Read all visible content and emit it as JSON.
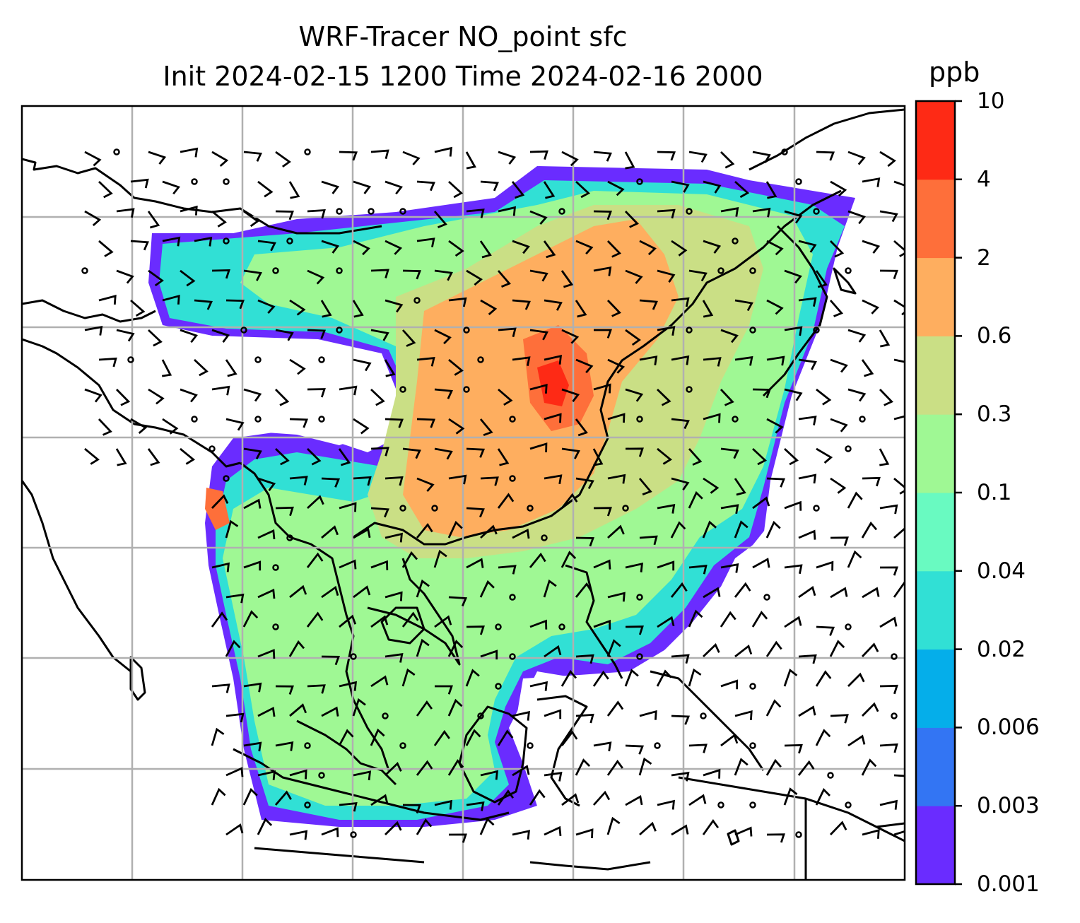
{
  "title": {
    "line1": "WRF-Tracer NO_point sfc",
    "line2": "Init 2024-02-15 1200 Time 2024-02-16 2000"
  },
  "colorbar": {
    "unit": "ppb",
    "tick_labels": [
      "10",
      "4",
      "2",
      "0.6",
      "0.3",
      "0.1",
      "0.04",
      "0.02",
      "0.006",
      "0.003",
      "0.001"
    ],
    "colors_bottom_to_top": [
      "#6a2cff",
      "#3375f3",
      "#05aeea",
      "#31e0d5",
      "#69fac1",
      "#9ff894",
      "#cadf85",
      "#feae5f",
      "#fe6f3a",
      "#fe2a15"
    ]
  },
  "map": {
    "gridlines": true,
    "grid_color": "#b0b0b0",
    "coastline_color": "#000000",
    "wind_barb_color": "#000000",
    "field_colors": {
      "very_low": "#6a2cff",
      "low": "#31e0d5",
      "medium": "#9ff894",
      "mid_high": "#cadf85",
      "high": "#feae5f",
      "peak": "#fe2a15"
    }
  }
}
